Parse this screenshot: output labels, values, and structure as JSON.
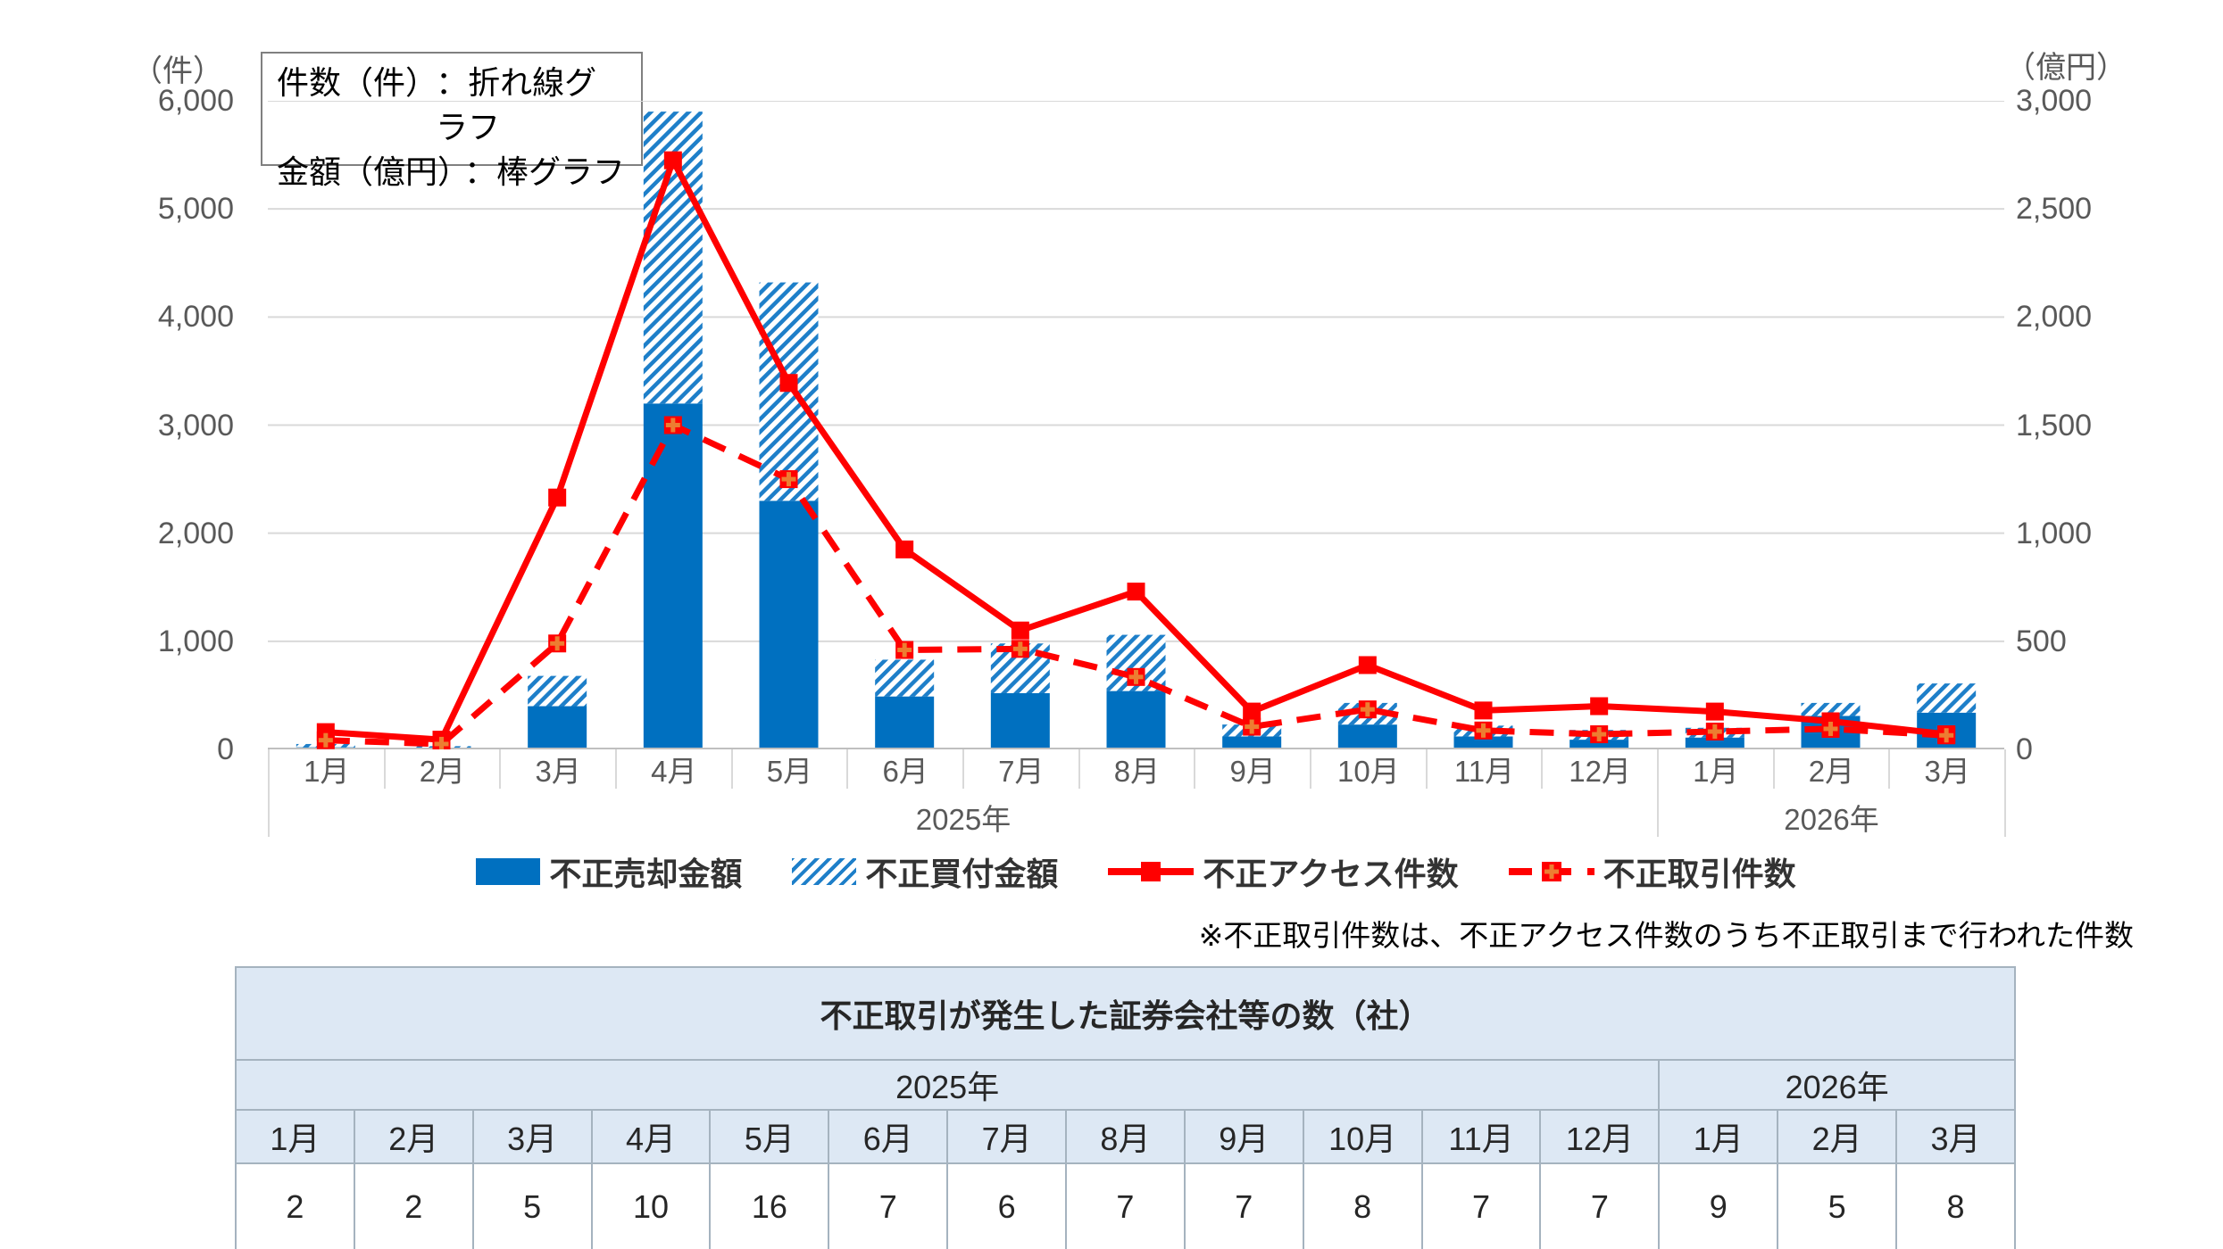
{
  "chart": {
    "left_axis": {
      "unit": "（件）",
      "ticks": [
        {
          "label": "6,000",
          "value": 6000
        },
        {
          "label": "5,000",
          "value": 5000
        },
        {
          "label": "4,000",
          "value": 4000
        },
        {
          "label": "3,000",
          "value": 3000
        },
        {
          "label": "2,000",
          "value": 2000
        },
        {
          "label": "1,000",
          "value": 1000
        },
        {
          "label": "0",
          "value": 0
        }
      ]
    },
    "right_axis": {
      "unit": "（億円）",
      "ticks": [
        {
          "label": "3,000",
          "value": 3000
        },
        {
          "label": "2,500",
          "value": 2500
        },
        {
          "label": "2,000",
          "value": 2000
        },
        {
          "label": "1,500",
          "value": 1500
        },
        {
          "label": "1,000",
          "value": 1000
        },
        {
          "label": "500",
          "value": 500
        },
        {
          "label": "0",
          "value": 0
        }
      ]
    },
    "info_box": {
      "rows": [
        {
          "label": "件数（件）",
          "value": "：折れ線グラフ"
        },
        {
          "label": "金額（億円）",
          "value": "：棒グラフ"
        }
      ]
    },
    "legend": [
      {
        "label": "不正売却金額",
        "swatch": "bar-solid"
      },
      {
        "label": "不正買付金額",
        "swatch": "bar-hatched"
      },
      {
        "label": "不正アクセス件数",
        "swatch": "line-solid"
      },
      {
        "label": "不正取引件数",
        "swatch": "line-dashed"
      }
    ],
    "x_year_groups": [
      {
        "label": "2025年",
        "span": 12
      },
      {
        "label": "2026年",
        "span": 3
      }
    ],
    "footnote": "※不正取引件数は、不正アクセス件数のうち不正取引まで行われた件数"
  },
  "chart_data": {
    "type": "combo",
    "categories": [
      "1月",
      "2月",
      "3月",
      "4月",
      "5月",
      "6月",
      "7月",
      "8月",
      "9月",
      "10月",
      "11月",
      "12月",
      "1月",
      "2月",
      "3月"
    ],
    "category_years": [
      "2025年",
      "2025年",
      "2025年",
      "2025年",
      "2025年",
      "2025年",
      "2025年",
      "2025年",
      "2025年",
      "2025年",
      "2025年",
      "2025年",
      "2026年",
      "2026年",
      "2026年"
    ],
    "left_ylim": [
      0,
      6000
    ],
    "right_ylim": [
      0,
      3000
    ],
    "grid": "horizontal",
    "legend_position": "bottom",
    "series": [
      {
        "name": "不正売却金額",
        "type": "bar",
        "stack": "amount",
        "axis": "right",
        "unit": "億円",
        "values": [
          10,
          5,
          200,
          1600,
          1150,
          245,
          260,
          270,
          60,
          115,
          60,
          45,
          55,
          155,
          170
        ]
      },
      {
        "name": "不正買付金額",
        "type": "bar-hatched",
        "stack": "amount",
        "axis": "right",
        "unit": "億円",
        "values": [
          15,
          10,
          140,
          1350,
          1010,
          170,
          230,
          260,
          55,
          100,
          50,
          45,
          45,
          60,
          135
        ]
      },
      {
        "name": "不正アクセス件数",
        "type": "line",
        "axis": "left",
        "unit": "件",
        "values": [
          160,
          90,
          2330,
          5450,
          3390,
          1850,
          1100,
          1460,
          350,
          780,
          360,
          400,
          350,
          260,
          140
        ]
      },
      {
        "name": "不正取引件数",
        "type": "line-dashed",
        "axis": "left",
        "unit": "件",
        "values": [
          85,
          50,
          980,
          3000,
          2500,
          920,
          930,
          670,
          210,
          370,
          175,
          140,
          165,
          190,
          130
        ]
      }
    ]
  },
  "table": {
    "title": "不正取引が発生した証券会社等の数（社）",
    "year_groups": [
      {
        "label": "2025年",
        "months": [
          "1月",
          "2月",
          "3月",
          "4月",
          "5月",
          "6月",
          "7月",
          "8月",
          "9月",
          "10月",
          "11月",
          "12月"
        ]
      },
      {
        "label": "2026年",
        "months": [
          "1月",
          "2月",
          "3月"
        ]
      }
    ],
    "values": [
      "2",
      "2",
      "5",
      "10",
      "16",
      "7",
      "6",
      "7",
      "7",
      "8",
      "7",
      "7",
      "9",
      "5",
      "8"
    ]
  },
  "colors": {
    "bar_blue": "#0070C0",
    "hatch_blue": "#1E7FC9",
    "line_red": "#FF0000",
    "marker_plus_orange": "#ED7D31",
    "gridline": "#D9D9D9",
    "axis_line": "#BFBFBF",
    "axis_text": "#595959",
    "table_header_blue": "#DDE8F4",
    "table_border": "#A5B3BF"
  }
}
